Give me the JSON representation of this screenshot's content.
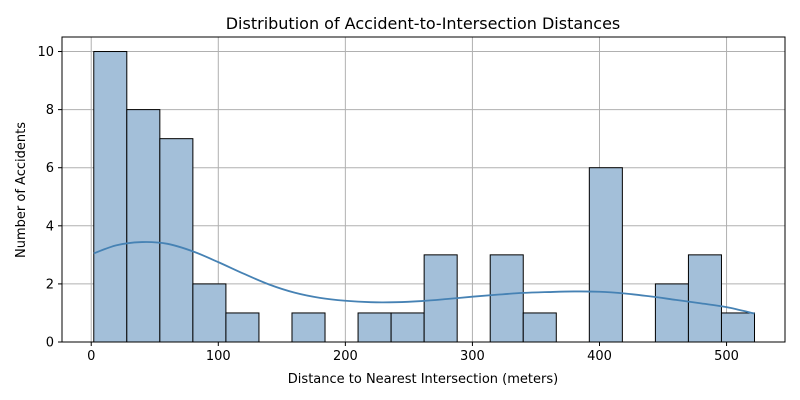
{
  "chart_data": {
    "type": "bar",
    "subtype": "histogram",
    "title": "Distribution of Accident-to-Intersection Distances",
    "xlabel": "Distance to Nearest Intersection (meters)",
    "ylabel": "Number of Accidents",
    "xlim": [
      -23,
      546
    ],
    "ylim": [
      0,
      10.5
    ],
    "xticks": [
      0,
      100,
      200,
      300,
      400,
      500
    ],
    "yticks": [
      0,
      2,
      4,
      6,
      8,
      10
    ],
    "grid": true,
    "bin_edges": [
      2,
      28,
      54,
      80,
      106,
      132,
      158,
      184,
      210,
      236,
      262,
      288,
      314,
      340,
      366,
      392,
      418,
      444,
      470,
      496,
      522
    ],
    "counts": [
      10,
      8,
      7,
      2,
      1,
      0,
      1,
      0,
      1,
      1,
      3,
      0,
      3,
      1,
      0,
      6,
      0,
      2,
      3,
      1
    ],
    "kde": {
      "x": [
        2,
        20,
        40,
        60,
        80,
        100,
        120,
        140,
        160,
        180,
        200,
        220,
        240,
        260,
        280,
        300,
        320,
        340,
        360,
        380,
        400,
        420,
        440,
        460,
        480,
        500,
        522
      ],
      "y": [
        3.05,
        3.33,
        3.44,
        3.38,
        3.12,
        2.75,
        2.35,
        1.98,
        1.7,
        1.52,
        1.42,
        1.37,
        1.37,
        1.41,
        1.48,
        1.56,
        1.63,
        1.69,
        1.72,
        1.74,
        1.73,
        1.67,
        1.57,
        1.45,
        1.33,
        1.2,
        0.98
      ]
    },
    "bar_color": "#a3bfd9",
    "bar_edge_color": "#000000",
    "kde_color": "#4682b4",
    "grid_color": "#b0b0b0"
  }
}
